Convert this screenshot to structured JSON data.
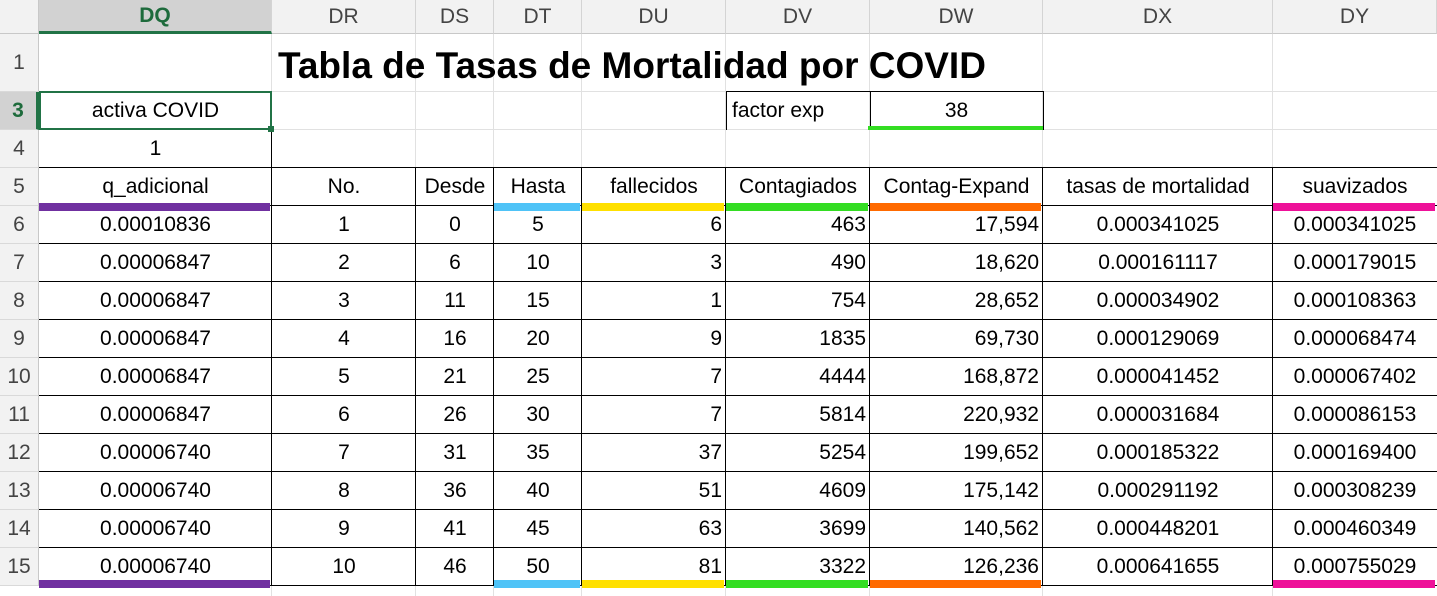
{
  "columns": [
    "DQ",
    "DR",
    "DS",
    "DT",
    "DU",
    "DV",
    "DW",
    "DX",
    "DY"
  ],
  "active_column": "DQ",
  "row_numbers": [
    "1",
    "3",
    "4",
    "5",
    "6",
    "7",
    "8",
    "9",
    "10",
    "11",
    "12",
    "13",
    "14",
    "15"
  ],
  "active_row": "3",
  "title": "Tabla de Tasas de Mortalidad por COVID",
  "activa_label": "activa COVID",
  "activa_value": "1",
  "factor_label": "factor exp",
  "factor_value": "38",
  "headers": [
    "q_adicional",
    "No.",
    "Desde",
    "Hasta",
    "fallecidos",
    "Contagiados",
    "Contag-Expand",
    "tasas de mortalidad",
    "suavizados"
  ],
  "rows": [
    [
      "0.00010836",
      "1",
      "0",
      "5",
      "6",
      "463",
      "17,594",
      "0.000341025",
      "0.000341025"
    ],
    [
      "0.00006847",
      "2",
      "6",
      "10",
      "3",
      "490",
      "18,620",
      "0.000161117",
      "0.000179015"
    ],
    [
      "0.00006847",
      "3",
      "11",
      "15",
      "1",
      "754",
      "28,652",
      "0.000034902",
      "0.000108363"
    ],
    [
      "0.00006847",
      "4",
      "16",
      "20",
      "9",
      "1835",
      "69,730",
      "0.000129069",
      "0.000068474"
    ],
    [
      "0.00006847",
      "5",
      "21",
      "25",
      "7",
      "4444",
      "168,872",
      "0.000041452",
      "0.000067402"
    ],
    [
      "0.00006847",
      "6",
      "26",
      "30",
      "7",
      "5814",
      "220,932",
      "0.000031684",
      "0.000086153"
    ],
    [
      "0.00006740",
      "7",
      "31",
      "35",
      "37",
      "5254",
      "199,652",
      "0.000185322",
      "0.000169400"
    ],
    [
      "0.00006740",
      "8",
      "36",
      "40",
      "51",
      "4609",
      "175,142",
      "0.000291192",
      "0.000308239"
    ],
    [
      "0.00006740",
      "9",
      "41",
      "45",
      "63",
      "3699",
      "140,562",
      "0.000448201",
      "0.000460349"
    ],
    [
      "0.00006740",
      "10",
      "46",
      "50",
      "81",
      "3322",
      "126,236",
      "0.000641655",
      "0.000755029"
    ]
  ],
  "colors": {
    "q_adicional": "#7030a0",
    "hasta": "#4fc3f7",
    "fallecidos": "#ffe000",
    "contagiados": "#33dd22",
    "contag_expand": "#ff6a00",
    "suavizados": "#ee1199",
    "factor": "#33dd22",
    "selection": "#217346"
  }
}
